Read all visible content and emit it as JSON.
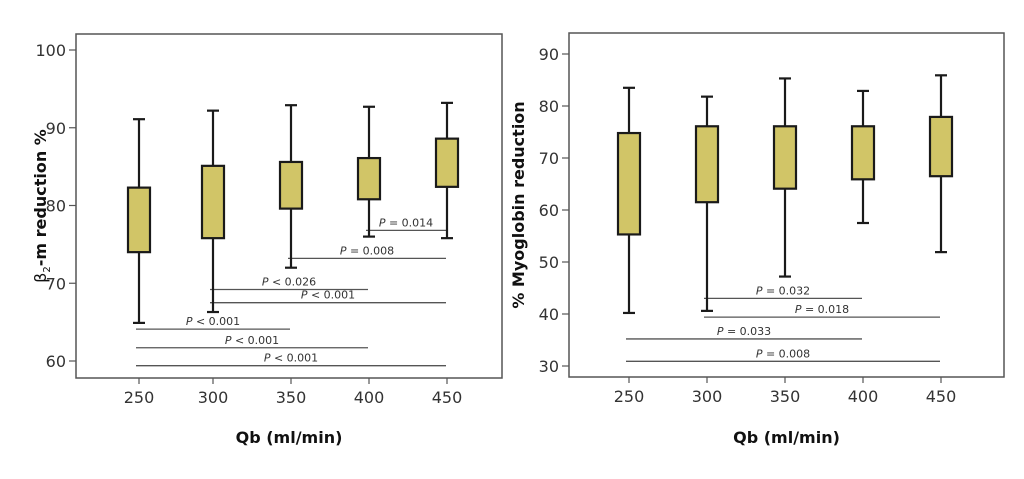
{
  "chart_data": [
    {
      "type": "box",
      "title": "",
      "xlabel": "Qb (ml/min)",
      "ylabel": "β2-m reduction %",
      "ylabel_parts": {
        "prefix": "β",
        "subscript": "2",
        "suffix": "-m reduction %"
      },
      "ylim": [
        58,
        102
      ],
      "yticks": [
        60,
        70,
        80,
        90,
        100
      ],
      "categories": [
        "250",
        "300",
        "350",
        "400",
        "450"
      ],
      "box_color": "#d1c567",
      "series": [
        {
          "name": "β2-m reduction",
          "boxes": [
            {
              "category": "250",
              "whisker_low": 64.9,
              "q1": 74.0,
              "q3": 82.3,
              "whisker_high": 91.1
            },
            {
              "category": "300",
              "whisker_low": 66.3,
              "q1": 75.8,
              "q3": 85.1,
              "whisker_high": 92.2
            },
            {
              "category": "350",
              "whisker_low": 72.0,
              "q1": 79.6,
              "q3": 85.6,
              "whisker_high": 92.9
            },
            {
              "category": "400",
              "whisker_low": 76.0,
              "q1": 80.8,
              "q3": 86.1,
              "whisker_high": 92.7
            },
            {
              "category": "450",
              "whisker_low": 75.8,
              "q1": 82.4,
              "q3": 88.6,
              "whisker_high": 93.2
            }
          ]
        }
      ],
      "significance": [
        {
          "from": "400",
          "to": "450",
          "label_p": "P",
          "label_rest": " = 0.014",
          "y": 76.8
        },
        {
          "from": "350",
          "to": "450",
          "label_p": "P",
          "label_rest": " = 0.008",
          "y": 73.2
        },
        {
          "from": "300",
          "to": "400",
          "label_p": "P",
          "label_rest": " < 0.026",
          "y": 69.2
        },
        {
          "from": "300",
          "to": "450",
          "label_p": "P",
          "label_rest": " < 0.001",
          "y": 67.5
        },
        {
          "from": "250",
          "to": "350",
          "label_p": "P",
          "label_rest": " < 0.001",
          "y": 64.1
        },
        {
          "from": "250",
          "to": "400",
          "label_p": "P",
          "label_rest": " < 0.001",
          "y": 61.7
        },
        {
          "from": "250",
          "to": "450",
          "label_p": "P",
          "label_rest": " < 0.001",
          "y": 59.4
        }
      ]
    },
    {
      "type": "box",
      "title": "",
      "xlabel": "Qb (ml/min)",
      "ylabel": "% Myoglobin reduction",
      "ylim": [
        27.5,
        94
      ],
      "yticks": [
        30,
        40,
        50,
        60,
        70,
        80,
        90
      ],
      "categories": [
        "250",
        "300",
        "350",
        "400",
        "450"
      ],
      "box_color": "#d1c567",
      "series": [
        {
          "name": "Myoglobin reduction",
          "boxes": [
            {
              "category": "250",
              "whisker_low": 40.2,
              "q1": 55.3,
              "q3": 74.8,
              "whisker_high": 83.5
            },
            {
              "category": "300",
              "whisker_low": 40.6,
              "q1": 61.5,
              "q3": 76.1,
              "whisker_high": 81.8
            },
            {
              "category": "350",
              "whisker_low": 47.2,
              "q1": 64.1,
              "q3": 76.1,
              "whisker_high": 85.3
            },
            {
              "category": "400",
              "whisker_low": 57.5,
              "q1": 65.9,
              "q3": 76.1,
              "whisker_high": 82.9
            },
            {
              "category": "450",
              "whisker_low": 51.9,
              "q1": 66.5,
              "q3": 77.9,
              "whisker_high": 85.9
            }
          ]
        }
      ],
      "significance": [
        {
          "from": "300",
          "to": "400",
          "label_p": "P",
          "label_rest": " = 0.032",
          "y": 43.0
        },
        {
          "from": "300",
          "to": "450",
          "label_p": "P",
          "label_rest": " = 0.018",
          "y": 39.4
        },
        {
          "from": "250",
          "to": "400",
          "label_p": "P",
          "label_rest": " = 0.033",
          "y": 35.2
        },
        {
          "from": "250",
          "to": "450",
          "label_p": "P",
          "label_rest": " = 0.008",
          "y": 30.9
        }
      ]
    }
  ]
}
